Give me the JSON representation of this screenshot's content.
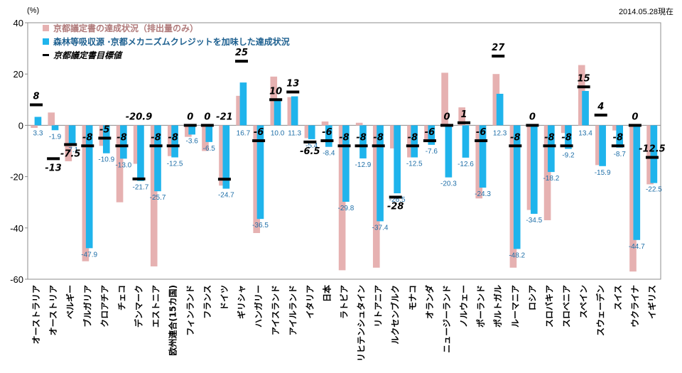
{
  "chart_data": {
    "type": "bar",
    "title": "",
    "date_note": "2014.05.28現在",
    "y_unit": "(%)",
    "ylim": [
      -60,
      40
    ],
    "y_ticks": [
      "40",
      "20",
      "0",
      "-20",
      "-40",
      "-60"
    ],
    "legend": [
      {
        "name": "京都議定書の達成状況（排出量のみ）",
        "color": "#e6b1b1"
      },
      {
        "name": "森林等吸収源 ·京都メカニズムクレジットを加味した達成状況",
        "color": "#1fb4ec"
      },
      {
        "name": "京都議定書目標値",
        "color": "#000000"
      }
    ],
    "categories": [
      "オーストラリア",
      "オーストリア",
      "ベルギー",
      "ブルガリア",
      "クロアチア",
      "チェコ",
      "デンマーク",
      "エストニア",
      "欧州連合(15カ国)",
      "フィンランド",
      "フランス",
      "ドイツ",
      "ギリシャ",
      "ハンガリー",
      "アイスランド",
      "アイルランド",
      "イタリア",
      "日本",
      "ラトビア",
      "リヒテンシュタイン",
      "リトアニア",
      "ルクセンブルク",
      "モナコ",
      "オランダ",
      "ニュージーランド",
      "ノルウェー",
      "ポーランド",
      "ポルトガル",
      "ルーマニア",
      "ロシア",
      "スロバキア",
      "スロベニア",
      "スペイン",
      "スウェーデン",
      "スイス",
      "ウクライナ",
      "イギリス"
    ],
    "series": [
      {
        "name": "京都議定書の達成状況（排出量のみ）",
        "values": [
          -1.0,
          5.0,
          -14.0,
          -53.0,
          -8.0,
          -30.0,
          -15.0,
          -55.0,
          -12.0,
          -4.5,
          -10.0,
          -23.5,
          11.5,
          -42.0,
          19.0,
          11.0,
          -5.0,
          1.5,
          -56.5,
          1.0,
          -55.5,
          -9.0,
          -12.5,
          -6.5,
          20.5,
          7.0,
          -28.5,
          20.0,
          -55.5,
          -33.0,
          -37.0,
          -3.0,
          23.5,
          -15.5,
          -2.0,
          -57.0,
          -23.0
        ]
      },
      {
        "name": "森林等吸収源 ·京都メカニズムクレジットを加味した達成状況",
        "values": [
          3.3,
          -1.9,
          -7.1,
          -47.9,
          -10.9,
          -13.0,
          -21.7,
          -25.7,
          -12.5,
          -3.6,
          -6.5,
          -24.7,
          16.7,
          -36.5,
          10.0,
          11.3,
          -5.4,
          -8.4,
          -29.8,
          -12.9,
          -37.4,
          -26.5,
          -12.5,
          -7.6,
          -20.3,
          -12.6,
          -24.3,
          12.3,
          -48.2,
          -34.5,
          -18.2,
          -9.2,
          13.4,
          -15.9,
          -8.7,
          -44.7,
          -22.5
        ]
      },
      {
        "name": "京都議定書目標値",
        "values": [
          8,
          -13,
          -7.5,
          -8,
          -5,
          -8,
          -20.9,
          -8,
          -8,
          0,
          0,
          -21,
          25,
          -6,
          10,
          13,
          -6.5,
          -6,
          -8,
          -8,
          -8,
          -28,
          -8,
          -6,
          0,
          1,
          -6,
          27,
          -8,
          0,
          -8,
          -8,
          15,
          4,
          -8,
          0,
          -12.5
        ]
      }
    ],
    "value_labels": [
      "3.3",
      "-1.9",
      "-7.1",
      "-47.9",
      "-10.9",
      "-13.0",
      "-21.7",
      "-25.7",
      "-12.5",
      "-3.6",
      "-6.5",
      "-24.7",
      "16.7",
      "-36.5",
      "10.0",
      "11.3",
      "-5.4",
      "-8.4",
      "-29.8",
      "-12.9",
      "-37.4",
      "-26.5",
      "-12.5",
      "-7.6",
      "-20.3",
      "-12.6",
      "-24.3",
      "12.3",
      "-48.2",
      "-34.5",
      "-18.2",
      "-9.2",
      "13.4",
      "-15.9",
      "-8.7",
      "-44.7",
      "-22.5"
    ],
    "target_labels": [
      "8",
      "-13",
      "-7.5",
      "-8",
      "-5",
      "-8",
      "-20.9",
      "-8",
      "-8",
      "0",
      "0",
      "-21",
      "25",
      "-6",
      "10",
      "13",
      "-6.5",
      "-6",
      "-8",
      "-8",
      "-8",
      "-28",
      "-8",
      "-6",
      "0",
      "1",
      "-6",
      "27",
      "-8",
      "0",
      "-8",
      "-8",
      "15",
      "4",
      "-8",
      "0",
      "-12.5"
    ]
  }
}
